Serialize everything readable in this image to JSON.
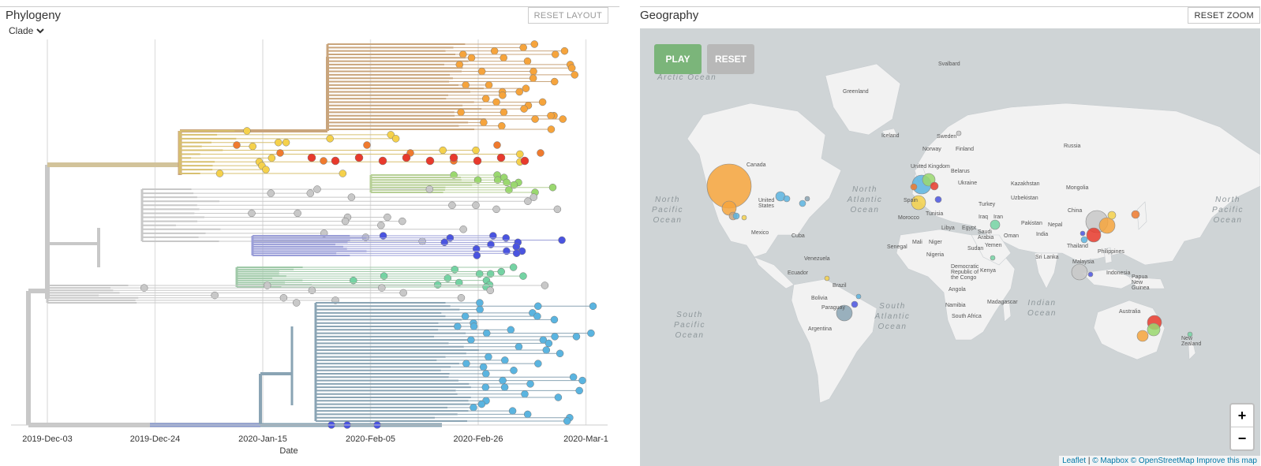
{
  "phylogeny": {
    "title": "Phylogeny",
    "reset_label": "RESET LAYOUT",
    "clade_label": "Clade",
    "x_axis_title": "Date",
    "x_ticks": [
      "2019-Dec-03",
      "2019-Dec-24",
      "2020-Jan-15",
      "2020-Feb-05",
      "2020-Feb-26",
      "2020-Mar-1"
    ]
  },
  "clade_colors": {
    "tan": "#c9a57c",
    "orange": "#f6a43c",
    "yellow": "#f5d14b",
    "red": "#e83a2c",
    "dark_orange": "#ef7a2e",
    "green": "#9ad86f",
    "grey": "#c8c8c8",
    "blue": "#4a54e0",
    "teal": "#74d3a3",
    "light_blue": "#5ab4e0",
    "steel": "#8aa4b4"
  },
  "geography": {
    "title": "Geography",
    "reset_zoom_label": "RESET ZOOM",
    "play_label": "PLAY",
    "reset_label": "RESET",
    "play_color": "#7bb57a",
    "reset_color": "#b8b8b8",
    "oceans": {
      "arctic": "Arctic Ocean",
      "north_pacific_left": "North Pacific Ocean",
      "north_atlantic": "North Atlantic Ocean",
      "south_pacific": "South Pacific Ocean",
      "south_atlantic": "South Atlantic Ocean",
      "indian": "Indian Ocean",
      "north_pacific_right": "North Pacific Ocean"
    },
    "places": {
      "greenland": "Greenland",
      "svalbard": "Svalbard",
      "iceland": "Iceland",
      "canada": "Canada",
      "united_states": "United States",
      "mexico": "Mexico",
      "cuba": "Cuba",
      "venezuela": "Venezuela",
      "ecuador": "Ecuador",
      "brazil": "Brazil",
      "bolivia": "Bolivia",
      "paraguay": "Paraguay",
      "argentina": "Argentina",
      "sweden": "Sweden",
      "norway": "Norway",
      "finland": "Finland",
      "russia": "Russia",
      "united_kingdom": "United Kingdom",
      "belarus": "Belarus",
      "ukraine": "Ukraine",
      "spain": "Spain",
      "morocco": "Morocco",
      "tunisia": "Tunisia",
      "libya": "Libya",
      "egypt": "Egypt",
      "turkey": "Turkey",
      "iraq": "Iraq",
      "iran": "Iran",
      "saudi_arabia": "Saudi Arabia",
      "oman": "Oman",
      "yemen": "Yemen",
      "kazakhstan": "Kazakhstan",
      "uzbekistan": "Uzbekistan",
      "pakistan": "Pakistan",
      "india": "India",
      "nepal": "Nepal",
      "mongolia": "Mongolia",
      "china": "China",
      "thailand": "Thailand",
      "sri_lanka": "Sri Lanka",
      "malaysia": "Malaysia",
      "indonesia": "Indonesia",
      "philippines": "Philippines",
      "papua": "Papua New Guinea",
      "australia": "Australia",
      "new_zealand": "New Zealand",
      "mali": "Mali",
      "niger": "Niger",
      "nigeria": "Nigeria",
      "senegal": "Senegal",
      "sudan": "Sudan",
      "drc": "Democratic Republic of the Congo",
      "kenya": "Kenya",
      "angola": "Angola",
      "namibia": "Namibia",
      "south_africa": "South Africa",
      "madagascar": "Madagascar"
    },
    "attribution": {
      "leaflet": "Leaflet",
      "mapbox": "© Mapbox",
      "osm": "© OpenStreetMap",
      "improve": "Improve this map"
    },
    "zoom_in": "+",
    "zoom_out": "−"
  }
}
